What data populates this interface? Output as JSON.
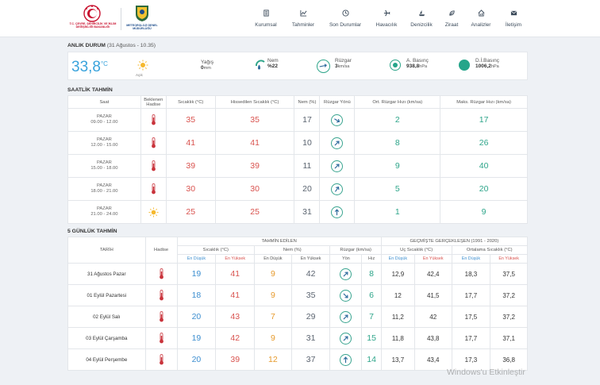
{
  "header": {
    "logo1_text": "T.C. ÇEVRE, ŞEHİRCİLİK VE İKLİM DEĞİŞİKLİĞİ BAKANLIĞI",
    "logo2_text": "METEOROLOJİ GENEL MÜDÜRLÜĞÜ",
    "nav": [
      {
        "label": "Kurumsal",
        "icon": "building-icon"
      },
      {
        "label": "Tahminler",
        "icon": "chart-icon"
      },
      {
        "label": "Son Durumlar",
        "icon": "clock-icon"
      },
      {
        "label": "Havacılık",
        "icon": "plane-icon"
      },
      {
        "label": "Denizcilik",
        "icon": "ship-icon"
      },
      {
        "label": "Ziraat",
        "icon": "leaf-icon"
      },
      {
        "label": "Analizler",
        "icon": "home-chart-icon"
      },
      {
        "label": "İletişim",
        "icon": "mail-icon"
      }
    ]
  },
  "now": {
    "title": "ANLIK DURUM",
    "subtitle": "(31 Ağustos - 10.35)",
    "temp": "33,8",
    "temp_unit": "°C",
    "condition": "Açık",
    "rain_label": "Yağış",
    "rain_value": "0",
    "rain_unit": "mm",
    "humidity_label": "Nem",
    "humidity_value": "%22",
    "wind_label": "Rüzgar",
    "wind_value": "3",
    "wind_unit": "km/sa",
    "pressure_label": "A. Basınç",
    "pressure_value": "938,8",
    "pressure_unit": "hPa",
    "sea_pressure_label": "D.İ.Basınç",
    "sea_pressure_value": "1006,2",
    "sea_pressure_unit": "hPa"
  },
  "hourly": {
    "title": "SAATLİK TAHMİN",
    "headers": [
      "Saat",
      "Beklenen Hadise",
      "Sıcaklık (°C)",
      "Hissedilen Sıcaklık (°C)",
      "Nem (%)",
      "Rüzgar Yönü",
      "Ort. Rüzgar Hızı (km/sa)",
      "Maks. Rüzgar Hızı (km/sa)"
    ],
    "rows": [
      {
        "day": "PAZAR",
        "time": "09.00 - 12.00",
        "icon": "thermometer-icon",
        "temp": "35",
        "feel": "35",
        "hum": "17",
        "dir": 120,
        "avg": "2",
        "max": "17"
      },
      {
        "day": "PAZAR",
        "time": "12.00 - 15.00",
        "icon": "thermometer-icon",
        "temp": "41",
        "feel": "41",
        "hum": "10",
        "dir": 45,
        "avg": "8",
        "max": "26"
      },
      {
        "day": "PAZAR",
        "time": "15.00 - 18.00",
        "icon": "thermometer-icon",
        "temp": "39",
        "feel": "39",
        "hum": "11",
        "dir": 45,
        "avg": "9",
        "max": "40"
      },
      {
        "day": "PAZAR",
        "time": "18.00 - 21.00",
        "icon": "thermometer-icon",
        "temp": "30",
        "feel": "30",
        "hum": "20",
        "dir": 35,
        "avg": "5",
        "max": "20"
      },
      {
        "day": "PAZAR",
        "time": "21.00 - 24.00",
        "icon": "sun-icon",
        "temp": "25",
        "feel": "25",
        "hum": "31",
        "dir": 0,
        "avg": "1",
        "max": "9"
      }
    ]
  },
  "daily": {
    "title": "5 GÜNLÜK TAHMİN",
    "group_forecast": "TAHMİN EDİLEN",
    "group_history": "GEÇMİŞTE GERÇEKLEŞEN (1991 - 2020)",
    "col_date": "TARİH",
    "col_event": "Hadise",
    "col_temp": "Sıcaklık (°C)",
    "col_hum": "Nem (%)",
    "col_wind": "Rüzgar (km/sa)",
    "col_extreme": "Uç Sıcaklık (°C)",
    "col_avg": "Ortalama Sıcaklık (°C)",
    "lo": "En Düşük",
    "hi": "En Yüksek",
    "dir": "Yön",
    "speed": "Hız",
    "rows": [
      {
        "date": "31 Ağustos Pazar",
        "tmin": "19",
        "tmax": "41",
        "hmin": "9",
        "hmax": "42",
        "dir": 45,
        "spd": "8",
        "emin": "12,9",
        "emax": "42,4",
        "amin": "18,3",
        "amax": "37,5"
      },
      {
        "date": "01 Eylül Pazartesi",
        "tmin": "18",
        "tmax": "41",
        "hmin": "9",
        "hmax": "35",
        "dir": 135,
        "spd": "6",
        "emin": "12",
        "emax": "41,5",
        "amin": "17,7",
        "amax": "37,2"
      },
      {
        "date": "02 Eylül Salı",
        "tmin": "20",
        "tmax": "43",
        "hmin": "7",
        "hmax": "29",
        "dir": 45,
        "spd": "7",
        "emin": "11,2",
        "emax": "42",
        "amin": "17,5",
        "amax": "37,2"
      },
      {
        "date": "03 Eylül Çarşamba",
        "tmin": "19",
        "tmax": "42",
        "hmin": "9",
        "hmax": "31",
        "dir": 45,
        "spd": "15",
        "emin": "11,8",
        "emax": "43,8",
        "amin": "17,7",
        "amax": "37,1"
      },
      {
        "date": "04 Eylül Perşembe",
        "tmin": "20",
        "tmax": "39",
        "hmin": "12",
        "hmax": "37",
        "dir": 0,
        "spd": "14",
        "emin": "13,7",
        "emax": "43,4",
        "amin": "17,3",
        "amax": "36,8"
      }
    ]
  },
  "watermark": "Windows'u Etkinleştir"
}
